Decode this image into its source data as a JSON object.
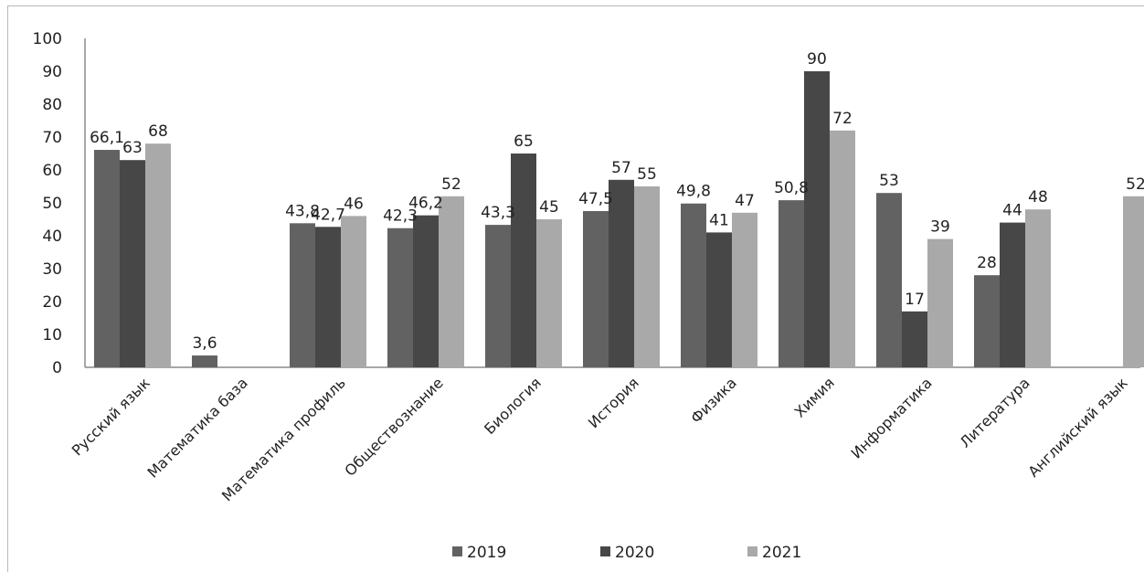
{
  "chart_data": {
    "type": "bar",
    "title": "",
    "xlabel": "",
    "ylabel": "",
    "ylim": [
      0,
      100
    ],
    "yticks": [
      "0",
      "10",
      "20",
      "30",
      "40",
      "50",
      "60",
      "70",
      "80",
      "90",
      "100"
    ],
    "grid": false,
    "legend_position": "bottom",
    "categories": [
      "Русский язык",
      "Математика база",
      "Математика профиль",
      "Обществознание",
      "Биология",
      "История",
      "Физика",
      "Химия",
      "Информатика",
      "Литература",
      "Английский язык"
    ],
    "series": [
      {
        "name": "2019",
        "color": "#626262",
        "values": [
          66.1,
          3.6,
          43.8,
          42.3,
          43.3,
          47.5,
          49.8,
          50.8,
          53,
          28,
          null
        ],
        "labels": [
          "66,1",
          "3,6",
          "43,8",
          "42,3",
          "43,3",
          "47,5",
          "49,8",
          "50,8",
          "53",
          "28",
          ""
        ]
      },
      {
        "name": "2020",
        "color": "#474747",
        "values": [
          63,
          null,
          42.7,
          46.2,
          65,
          57,
          41,
          90,
          17,
          44,
          null
        ],
        "labels": [
          "63",
          "",
          "42,7",
          "46,2",
          "65",
          "57",
          "41",
          "90",
          "17",
          "44",
          ""
        ]
      },
      {
        "name": "2021",
        "color": "#a9a9a9",
        "values": [
          68,
          null,
          46,
          52,
          45,
          55,
          47,
          72,
          39,
          48,
          52
        ],
        "labels": [
          "68",
          "",
          "46",
          "52",
          "45",
          "55",
          "47",
          "72",
          "39",
          "48",
          "52"
        ]
      }
    ]
  }
}
